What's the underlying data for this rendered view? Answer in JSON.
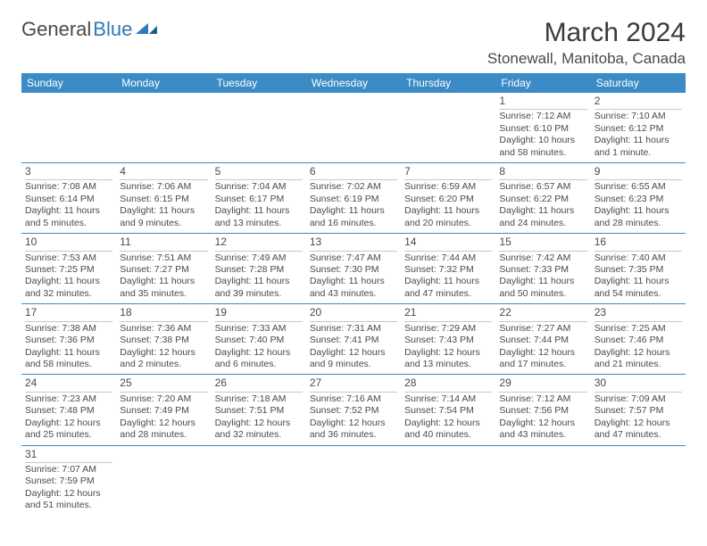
{
  "logo": {
    "word1": "General",
    "word2": "Blue"
  },
  "title": "March 2024",
  "location": "Stonewall, Manitoba, Canada",
  "columns": [
    "Sunday",
    "Monday",
    "Tuesday",
    "Wednesday",
    "Thursday",
    "Friday",
    "Saturday"
  ],
  "colors": {
    "header_bg": "#3b8bc6",
    "header_fg": "#ffffff",
    "shaded_bg": "#e8e8e8",
    "rule": "#3b8bc6",
    "text": "#4a4a4a"
  },
  "weeks": [
    [
      null,
      null,
      null,
      null,
      null,
      {
        "n": "1",
        "sunrise": "Sunrise: 7:12 AM",
        "sunset": "Sunset: 6:10 PM",
        "daylight": "Daylight: 10 hours and 58 minutes."
      },
      {
        "n": "2",
        "sunrise": "Sunrise: 7:10 AM",
        "sunset": "Sunset: 6:12 PM",
        "daylight": "Daylight: 11 hours and 1 minute."
      }
    ],
    [
      {
        "n": "3",
        "sunrise": "Sunrise: 7:08 AM",
        "sunset": "Sunset: 6:14 PM",
        "daylight": "Daylight: 11 hours and 5 minutes."
      },
      {
        "n": "4",
        "sunrise": "Sunrise: 7:06 AM",
        "sunset": "Sunset: 6:15 PM",
        "daylight": "Daylight: 11 hours and 9 minutes."
      },
      {
        "n": "5",
        "sunrise": "Sunrise: 7:04 AM",
        "sunset": "Sunset: 6:17 PM",
        "daylight": "Daylight: 11 hours and 13 minutes."
      },
      {
        "n": "6",
        "sunrise": "Sunrise: 7:02 AM",
        "sunset": "Sunset: 6:19 PM",
        "daylight": "Daylight: 11 hours and 16 minutes."
      },
      {
        "n": "7",
        "sunrise": "Sunrise: 6:59 AM",
        "sunset": "Sunset: 6:20 PM",
        "daylight": "Daylight: 11 hours and 20 minutes."
      },
      {
        "n": "8",
        "sunrise": "Sunrise: 6:57 AM",
        "sunset": "Sunset: 6:22 PM",
        "daylight": "Daylight: 11 hours and 24 minutes."
      },
      {
        "n": "9",
        "sunrise": "Sunrise: 6:55 AM",
        "sunset": "Sunset: 6:23 PM",
        "daylight": "Daylight: 11 hours and 28 minutes."
      }
    ],
    [
      {
        "n": "10",
        "sunrise": "Sunrise: 7:53 AM",
        "sunset": "Sunset: 7:25 PM",
        "daylight": "Daylight: 11 hours and 32 minutes."
      },
      {
        "n": "11",
        "sunrise": "Sunrise: 7:51 AM",
        "sunset": "Sunset: 7:27 PM",
        "daylight": "Daylight: 11 hours and 35 minutes."
      },
      {
        "n": "12",
        "sunrise": "Sunrise: 7:49 AM",
        "sunset": "Sunset: 7:28 PM",
        "daylight": "Daylight: 11 hours and 39 minutes."
      },
      {
        "n": "13",
        "sunrise": "Sunrise: 7:47 AM",
        "sunset": "Sunset: 7:30 PM",
        "daylight": "Daylight: 11 hours and 43 minutes."
      },
      {
        "n": "14",
        "sunrise": "Sunrise: 7:44 AM",
        "sunset": "Sunset: 7:32 PM",
        "daylight": "Daylight: 11 hours and 47 minutes."
      },
      {
        "n": "15",
        "sunrise": "Sunrise: 7:42 AM",
        "sunset": "Sunset: 7:33 PM",
        "daylight": "Daylight: 11 hours and 50 minutes."
      },
      {
        "n": "16",
        "sunrise": "Sunrise: 7:40 AM",
        "sunset": "Sunset: 7:35 PM",
        "daylight": "Daylight: 11 hours and 54 minutes."
      }
    ],
    [
      {
        "n": "17",
        "sunrise": "Sunrise: 7:38 AM",
        "sunset": "Sunset: 7:36 PM",
        "daylight": "Daylight: 11 hours and 58 minutes."
      },
      {
        "n": "18",
        "sunrise": "Sunrise: 7:36 AM",
        "sunset": "Sunset: 7:38 PM",
        "daylight": "Daylight: 12 hours and 2 minutes."
      },
      {
        "n": "19",
        "sunrise": "Sunrise: 7:33 AM",
        "sunset": "Sunset: 7:40 PM",
        "daylight": "Daylight: 12 hours and 6 minutes."
      },
      {
        "n": "20",
        "sunrise": "Sunrise: 7:31 AM",
        "sunset": "Sunset: 7:41 PM",
        "daylight": "Daylight: 12 hours and 9 minutes."
      },
      {
        "n": "21",
        "sunrise": "Sunrise: 7:29 AM",
        "sunset": "Sunset: 7:43 PM",
        "daylight": "Daylight: 12 hours and 13 minutes."
      },
      {
        "n": "22",
        "sunrise": "Sunrise: 7:27 AM",
        "sunset": "Sunset: 7:44 PM",
        "daylight": "Daylight: 12 hours and 17 minutes."
      },
      {
        "n": "23",
        "sunrise": "Sunrise: 7:25 AM",
        "sunset": "Sunset: 7:46 PM",
        "daylight": "Daylight: 12 hours and 21 minutes."
      }
    ],
    [
      {
        "n": "24",
        "sunrise": "Sunrise: 7:23 AM",
        "sunset": "Sunset: 7:48 PM",
        "daylight": "Daylight: 12 hours and 25 minutes."
      },
      {
        "n": "25",
        "sunrise": "Sunrise: 7:20 AM",
        "sunset": "Sunset: 7:49 PM",
        "daylight": "Daylight: 12 hours and 28 minutes."
      },
      {
        "n": "26",
        "sunrise": "Sunrise: 7:18 AM",
        "sunset": "Sunset: 7:51 PM",
        "daylight": "Daylight: 12 hours and 32 minutes."
      },
      {
        "n": "27",
        "sunrise": "Sunrise: 7:16 AM",
        "sunset": "Sunset: 7:52 PM",
        "daylight": "Daylight: 12 hours and 36 minutes."
      },
      {
        "n": "28",
        "sunrise": "Sunrise: 7:14 AM",
        "sunset": "Sunset: 7:54 PM",
        "daylight": "Daylight: 12 hours and 40 minutes."
      },
      {
        "n": "29",
        "sunrise": "Sunrise: 7:12 AM",
        "sunset": "Sunset: 7:56 PM",
        "daylight": "Daylight: 12 hours and 43 minutes."
      },
      {
        "n": "30",
        "sunrise": "Sunrise: 7:09 AM",
        "sunset": "Sunset: 7:57 PM",
        "daylight": "Daylight: 12 hours and 47 minutes."
      }
    ],
    [
      {
        "n": "31",
        "sunrise": "Sunrise: 7:07 AM",
        "sunset": "Sunset: 7:59 PM",
        "daylight": "Daylight: 12 hours and 51 minutes."
      },
      null,
      null,
      null,
      null,
      null,
      null
    ]
  ],
  "shaded_rows": [
    1,
    2,
    3,
    4
  ]
}
